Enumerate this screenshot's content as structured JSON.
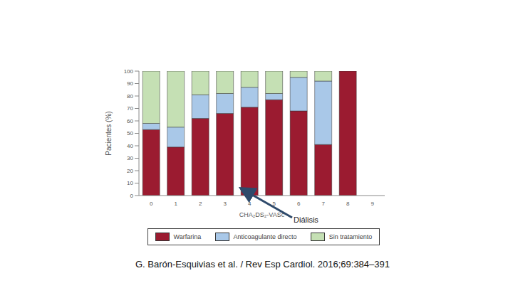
{
  "chart_data": {
    "type": "bar",
    "stacked": true,
    "categories": [
      "0",
      "1",
      "2",
      "3",
      "4",
      "5",
      "6",
      "7",
      "8",
      "9"
    ],
    "series": [
      {
        "name": "Warfarina",
        "color": "#9b1b30",
        "values": [
          53,
          39,
          62,
          66,
          71,
          77,
          68,
          41,
          100,
          null
        ]
      },
      {
        "name": "Anticoagulante directo",
        "color": "#a9c8e8",
        "values": [
          5,
          16,
          19,
          16,
          16,
          5,
          27,
          51,
          0,
          null
        ]
      },
      {
        "name": "Sin tratamiento",
        "color": "#c5e0b4",
        "values": [
          42,
          45,
          19,
          18,
          13,
          18,
          5,
          8,
          0,
          null
        ]
      }
    ],
    "ylim": [
      0,
      100
    ],
    "yticks": [
      0,
      10,
      20,
      30,
      40,
      50,
      60,
      70,
      80,
      90,
      100
    ],
    "ylabel": "Pacientes (%)",
    "xlabel": "CHA₂DS₂-VASc",
    "annotations": [
      "Diálisis"
    ],
    "caption": "G. Barón-Esquivias et al. / Rev Esp Cardiol. 2016;69:384–391",
    "legend": "bottom",
    "grid": false
  }
}
